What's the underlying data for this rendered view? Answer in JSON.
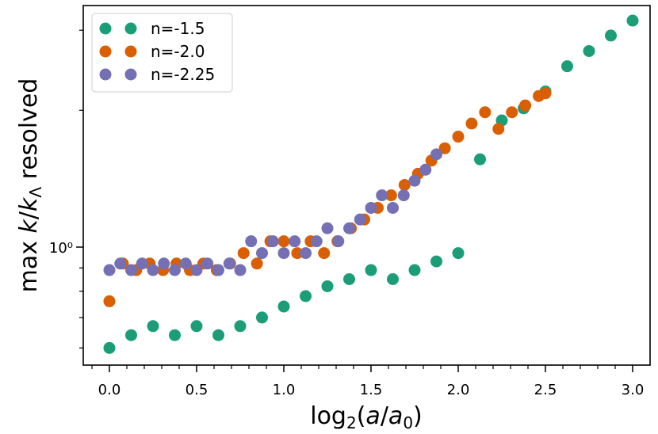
{
  "chart_data": {
    "type": "scatter",
    "xlabel": "log₂(a/a₀)",
    "ylabel": "max k/k_Λ resolved",
    "xlim": [
      -0.15,
      3.1
    ],
    "ylim": [
      0.55,
      3.4
    ],
    "yscale": "log",
    "x_ticks": [
      0.0,
      0.5,
      1.0,
      1.5,
      2.0,
      2.5,
      3.0
    ],
    "x_tick_labels": [
      "0.0",
      "0.5",
      "1.0",
      "1.5",
      "2.0",
      "2.5",
      "3.0"
    ],
    "y_major_ticks": [
      1.0
    ],
    "y_major_tick_labels": [
      "10⁰"
    ],
    "y_minor_ticks": [
      0.6,
      0.7,
      0.8,
      0.9,
      2,
      3
    ],
    "legend_position": "top-left",
    "series": [
      {
        "name": "n=-1.5",
        "color": "#1b9e77",
        "x": [
          0.0,
          0.125,
          0.25,
          0.375,
          0.5,
          0.625,
          0.75,
          0.875,
          1.0,
          1.125,
          1.25,
          1.375,
          1.5,
          1.625,
          1.75,
          1.875,
          2.0,
          2.125,
          2.25,
          2.375,
          2.5,
          2.625,
          2.75,
          2.875,
          3.0
        ],
        "y": [
          0.6,
          0.64,
          0.67,
          0.64,
          0.67,
          0.64,
          0.67,
          0.7,
          0.74,
          0.78,
          0.82,
          0.85,
          0.89,
          0.85,
          0.89,
          0.93,
          0.97,
          1.56,
          1.9,
          2.02,
          2.2,
          2.5,
          2.7,
          2.92,
          3.15
        ]
      },
      {
        "name": "n=-2.0",
        "color": "#d95f02",
        "x": [
          0.0,
          0.0769,
          0.1538,
          0.2308,
          0.3077,
          0.3846,
          0.4615,
          0.5385,
          0.6154,
          0.6923,
          0.7692,
          0.8462,
          0.9231,
          1.0,
          1.0769,
          1.1538,
          1.2308,
          1.3077,
          1.3846,
          1.4615,
          1.5385,
          1.6154,
          1.6923,
          1.7692,
          1.8462,
          1.9231,
          2.0,
          2.0769,
          2.1538,
          2.2308,
          2.3077,
          2.3846,
          2.4615,
          2.5
        ],
        "y": [
          0.76,
          0.92,
          0.89,
          0.92,
          0.89,
          0.92,
          0.89,
          0.92,
          0.89,
          0.92,
          0.97,
          0.92,
          1.03,
          1.03,
          0.97,
          1.03,
          0.97,
          1.03,
          1.1,
          1.15,
          1.22,
          1.3,
          1.37,
          1.45,
          1.55,
          1.65,
          1.75,
          1.87,
          1.98,
          1.82,
          1.98,
          2.05,
          2.15,
          2.18
        ]
      },
      {
        "name": "n=-2.25",
        "color": "#7570b3",
        "x": [
          0.0,
          0.0625,
          0.125,
          0.1875,
          0.25,
          0.3125,
          0.375,
          0.4375,
          0.5,
          0.5625,
          0.625,
          0.6875,
          0.75,
          0.8125,
          0.875,
          0.9375,
          1.0,
          1.0625,
          1.125,
          1.1875,
          1.25,
          1.3125,
          1.375,
          1.4375,
          1.5,
          1.5625,
          1.625,
          1.6875,
          1.75,
          1.8125,
          1.875
        ],
        "y": [
          0.89,
          0.92,
          0.89,
          0.92,
          0.89,
          0.92,
          0.89,
          0.92,
          0.89,
          0.92,
          0.89,
          0.92,
          0.89,
          1.03,
          0.97,
          1.03,
          0.97,
          1.03,
          0.97,
          1.03,
          1.1,
          1.03,
          1.1,
          1.15,
          1.22,
          1.3,
          1.22,
          1.3,
          1.4,
          1.48,
          1.6
        ]
      }
    ]
  }
}
